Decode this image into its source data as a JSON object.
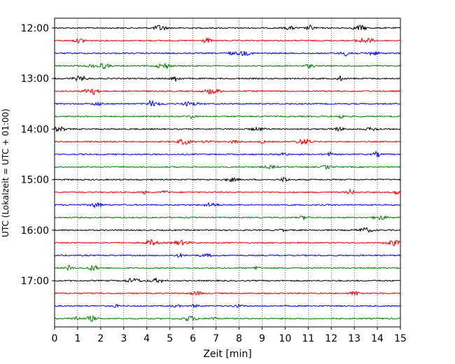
{
  "chart_data": {
    "type": "line",
    "subtype": "seismogram-helicorder",
    "title": "",
    "xlabel": "Zeit  [min]",
    "ylabel": "UTC (Lokalzeit = UTC + 01:00)",
    "xlim": [
      0,
      15
    ],
    "x_ticks": [
      "0",
      "1",
      "2",
      "3",
      "4",
      "5",
      "6",
      "7",
      "8",
      "9",
      "10",
      "11",
      "12",
      "13",
      "14",
      "15"
    ],
    "y_tick_labels": [
      "12:00",
      "13:00",
      "14:00",
      "15:00",
      "16:00",
      "17:00"
    ],
    "y_tick_rows": [
      0,
      4,
      8,
      12,
      16,
      20
    ],
    "vertical_grid": "dotted",
    "row_interval_minutes": 15,
    "rows": [
      {
        "start": "12:00",
        "color": "#000000"
      },
      {
        "start": "12:15",
        "color": "#ff0000"
      },
      {
        "start": "12:30",
        "color": "#0000ff"
      },
      {
        "start": "12:45",
        "color": "#008000"
      },
      {
        "start": "13:00",
        "color": "#000000"
      },
      {
        "start": "13:15",
        "color": "#ff0000"
      },
      {
        "start": "13:30",
        "color": "#0000ff"
      },
      {
        "start": "13:45",
        "color": "#008000"
      },
      {
        "start": "14:00",
        "color": "#000000"
      },
      {
        "start": "14:15",
        "color": "#ff0000"
      },
      {
        "start": "14:30",
        "color": "#0000ff"
      },
      {
        "start": "14:45",
        "color": "#008000"
      },
      {
        "start": "15:00",
        "color": "#000000"
      },
      {
        "start": "15:15",
        "color": "#ff0000"
      },
      {
        "start": "15:30",
        "color": "#0000ff"
      },
      {
        "start": "15:45",
        "color": "#008000"
      },
      {
        "start": "16:00",
        "color": "#000000"
      },
      {
        "start": "16:15",
        "color": "#ff0000"
      },
      {
        "start": "16:30",
        "color": "#0000ff"
      },
      {
        "start": "16:45",
        "color": "#008000"
      },
      {
        "start": "17:00",
        "color": "#000000"
      },
      {
        "start": "17:15",
        "color": "#ff0000"
      },
      {
        "start": "17:30",
        "color": "#0000ff"
      },
      {
        "start": "17:45",
        "color": "#008000"
      }
    ]
  }
}
